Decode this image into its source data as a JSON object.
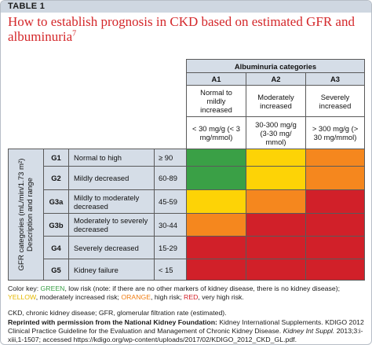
{
  "label": "TABLE 1",
  "title_main": "How to establish prognosis in CKD based on estimated GFR and albuminuria",
  "title_sup": "7",
  "albuminuria": {
    "heading": "Albuminuria categories",
    "cols": [
      {
        "code": "A1",
        "desc": "Normal to mildly increased",
        "range": "< 30 mg/g (< 3 mg/mmol)"
      },
      {
        "code": "A2",
        "desc": "Moderately increased",
        "range": "30-300 mg/g (3-30 mg/ mmol)"
      },
      {
        "code": "A3",
        "desc": "Severely increased",
        "range": "> 300 mg/g (> 30 mg/mmol)"
      }
    ]
  },
  "gfr_axis_label": "GFR categories (mL/min/1.73 m²) Description and range",
  "rows": [
    {
      "code": "G1",
      "desc": "Normal to high",
      "range": "≥ 90",
      "risk": [
        "green",
        "yellow",
        "orange"
      ]
    },
    {
      "code": "G2",
      "desc": "Mildly decreased",
      "range": "60-89",
      "risk": [
        "green",
        "yellow",
        "orange"
      ]
    },
    {
      "code": "G3a",
      "desc": "Mildly to moderately decreased",
      "range": "45-59",
      "risk": [
        "yellow",
        "orange",
        "red"
      ]
    },
    {
      "code": "G3b",
      "desc": "Moderately to severely decreased",
      "range": "30-44",
      "risk": [
        "orange",
        "red",
        "red"
      ]
    },
    {
      "code": "G4",
      "desc": "Severely decreased",
      "range": "15-29",
      "risk": [
        "red",
        "red",
        "red"
      ]
    },
    {
      "code": "G5",
      "desc": "Kidney failure",
      "range": "< 15",
      "risk": [
        "red",
        "red",
        "red"
      ]
    }
  ],
  "colors": {
    "green": "#3aa046",
    "yellow": "#fdd306",
    "orange": "#f5871e",
    "red": "#d12029"
  },
  "color_key": {
    "lead": "Color key: ",
    "green_word": "GREEN",
    "green_text": ", low risk (note: if there are no other markers of kidney disease, there is no kidney disease); ",
    "yellow_word": "YELLOW",
    "yellow_text": ", moderately increased risk; ",
    "orange_word": "ORANGE",
    "orange_text": ", high risk; ",
    "red_word": "RED",
    "red_text": ", very high risk."
  },
  "abbreviations": "CKD, chronic kidney disease; GFR, glomerular filtration rate (estimated).",
  "reprint": {
    "bold": "Reprinted with permission from the National Kidney Foundation:",
    "text1": " Kidney International Supplements. KDIGO 2012 Clinical Practice Guideline for the Evaluation and Management of Chronic Kidney Disease. ",
    "italic": "Kidney Int Suppl.",
    "text2": " 2013;3:i-xiii,1-1507; accessed https://kdigo.org/wp-content/uploads/2017/02/KDIGO_2012_CKD_GL.pdf."
  }
}
